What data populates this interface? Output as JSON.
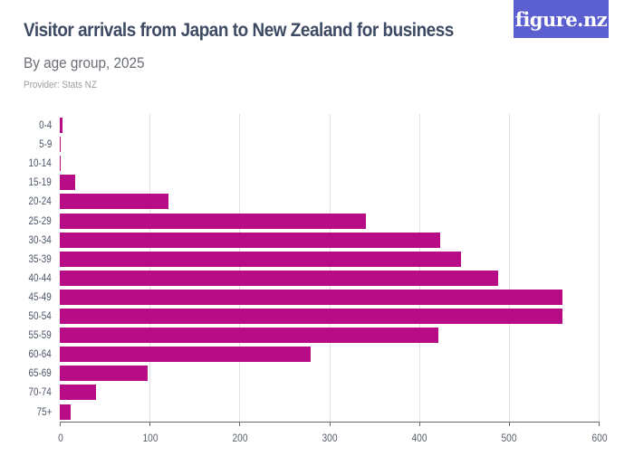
{
  "header": {
    "title": "Visitor arrivals from Japan to New Zealand for business",
    "subtitle": "By age group, 2025",
    "provider": "Provider: Stats NZ",
    "logo_text": "figure.nz"
  },
  "colors": {
    "bar": "#b80b86",
    "logo_bg": "#5b5fd0",
    "title": "#3d4a63"
  },
  "chart_data": {
    "type": "bar",
    "orientation": "horizontal",
    "title": "Visitor arrivals from Japan to New Zealand for business",
    "subtitle": "By age group, 2025",
    "xlabel": "",
    "ylabel": "",
    "categories": [
      "0-4",
      "5-9",
      "10-14",
      "15-19",
      "20-24",
      "25-29",
      "30-34",
      "35-39",
      "40-44",
      "45-49",
      "50-54",
      "55-59",
      "60-64",
      "65-69",
      "70-74",
      "75+"
    ],
    "values": [
      3,
      1,
      1,
      17,
      121,
      341,
      424,
      447,
      488,
      560,
      560,
      422,
      279,
      98,
      40,
      12
    ],
    "xlim": [
      0,
      600
    ],
    "xticks": [
      "0",
      "100",
      "200",
      "300",
      "400",
      "500",
      "600"
    ],
    "grid": true,
    "legend": null
  }
}
